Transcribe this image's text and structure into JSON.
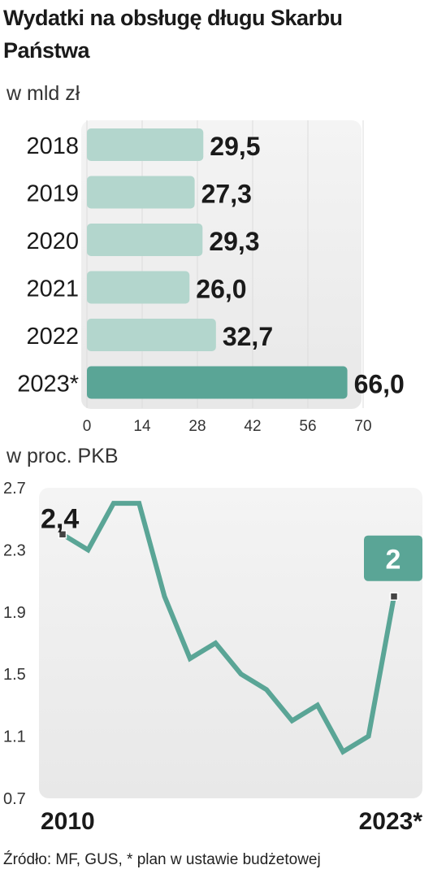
{
  "title": "Wydatki na obsługę długu Skarbu Państwa",
  "source": "Źródło: MF, GUS, * plan w ustawie budżetowej",
  "colors": {
    "bar_light": "#b3d6cd",
    "bar_dark": "#5aa596",
    "line": "#5aa596",
    "panel": "#ededed",
    "text": "#1a1a1a"
  },
  "chart_data": [
    {
      "type": "bar",
      "orientation": "horizontal",
      "subtitle": "w mld zł",
      "categories": [
        "2018",
        "2019",
        "2020",
        "2021",
        "2022",
        "2023*"
      ],
      "values": [
        29.5,
        27.3,
        29.3,
        26.0,
        32.7,
        66.0
      ],
      "value_labels": [
        "29,5",
        "27,3",
        "29,3",
        "26,0",
        "32,7",
        "66,0"
      ],
      "highlight_index": 5,
      "xlim": [
        0,
        70
      ],
      "xticks": [
        "0",
        "14",
        "28",
        "42",
        "56",
        "70"
      ],
      "xtick_values": [
        0,
        14,
        28,
        42,
        56,
        70
      ]
    },
    {
      "type": "line",
      "subtitle": "w proc. PKB",
      "x": [
        2010,
        2011,
        2012,
        2013,
        2014,
        2015,
        2016,
        2017,
        2018,
        2019,
        2020,
        2021,
        2022,
        2023
      ],
      "values": [
        2.4,
        2.3,
        2.6,
        2.6,
        2.0,
        1.6,
        1.7,
        1.5,
        1.4,
        1.2,
        1.3,
        1.0,
        1.1,
        2.0
      ],
      "ylim": [
        0.7,
        2.7
      ],
      "yticks": [
        "2.7",
        "2.3",
        "1.9",
        "1.5",
        "1.1",
        "0.7"
      ],
      "ytick_values": [
        2.7,
        2.3,
        1.9,
        1.5,
        1.1,
        0.7
      ],
      "xticks": [
        "2010",
        "2023*"
      ],
      "start_label": "2,4",
      "end_label": "2"
    }
  ]
}
